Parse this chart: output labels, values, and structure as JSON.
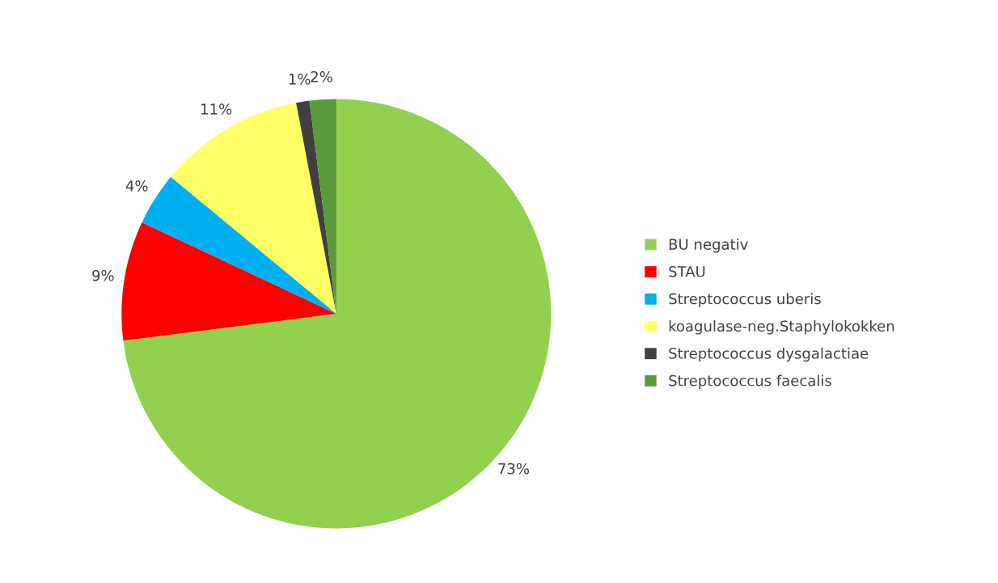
{
  "chart_data": {
    "type": "pie",
    "categories": [
      "BU negativ",
      "STAU",
      "Streptococcus uberis",
      "koagulase-neg.Staphylokokken",
      "Streptococcus dysgalactiae",
      "Streptococcus faecalis"
    ],
    "values": [
      73,
      9,
      4,
      11,
      1,
      2
    ],
    "value_labels": [
      "73%",
      "9%",
      "4%",
      "11%",
      "1%",
      "2%"
    ],
    "colors": [
      "#92d050",
      "#ff0000",
      "#00b0f0",
      "#ffff66",
      "#404040",
      "#5a9a3a"
    ],
    "legend": "right"
  }
}
